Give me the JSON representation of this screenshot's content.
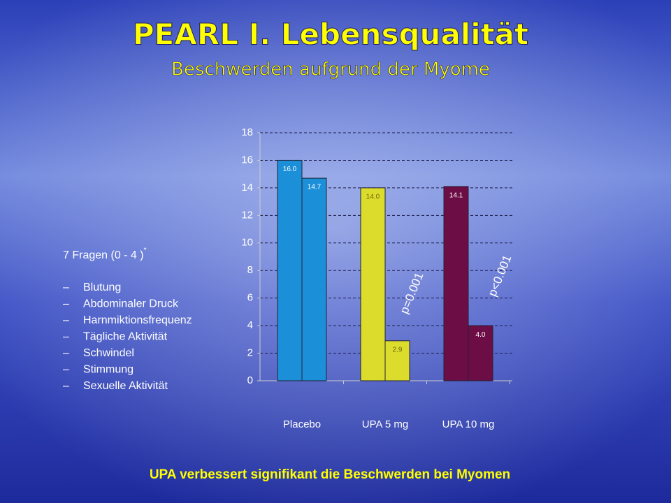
{
  "header": {
    "title": "PEARL I. Lebensqualität",
    "subtitle": "Beschwerden aufgrund der Myome"
  },
  "questions": {
    "heading": "7 Fragen (0 - 4 )",
    "footnote_mark": "*",
    "bullet": "–",
    "items": [
      "Blutung",
      "Abdominaler Druck",
      "Harnmiktionsfrequenz",
      "Tägliche Aktivität",
      "Schwindel",
      "Stimmung",
      "Sexuelle Aktivität"
    ]
  },
  "chart_data": {
    "type": "bar",
    "categories": [
      "Placebo",
      "UPA 5 mg",
      "UPA 10 mg"
    ],
    "colors": [
      "#1b8fd8",
      "#dcdc2c",
      "#6c0d46"
    ],
    "label_colors": [
      "#ffffff",
      "#6b6b10",
      "#ffffff"
    ],
    "series": [
      {
        "values": [
          16.0,
          14.0,
          14.1
        ],
        "value_labels": [
          "16.0",
          "14.0",
          "14.1"
        ]
      },
      {
        "values": [
          14.7,
          2.9,
          4.0
        ],
        "value_labels": [
          "14.7",
          "2.9",
          "4.0"
        ]
      }
    ],
    "annotations": [
      "p=0.001",
      "p<0.001"
    ],
    "ylim": [
      0,
      18
    ],
    "yticks": [
      0,
      2,
      4,
      6,
      8,
      10,
      12,
      14,
      16,
      18
    ],
    "grid": true
  },
  "footer": "UPA verbessert signifikant die Beschwerden bei Myomen"
}
